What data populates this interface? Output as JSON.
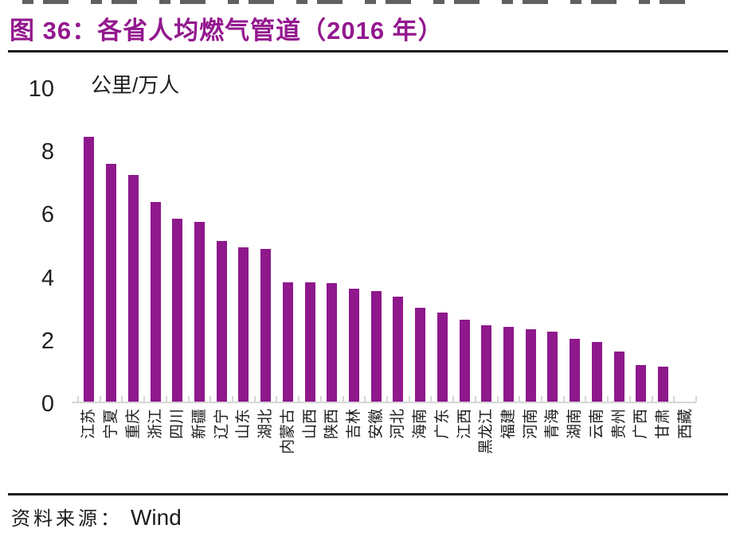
{
  "page": {
    "title": "图 36：各省人均燃气管道（2016 年）",
    "source_label": "资料来源：",
    "source_value": "Wind"
  },
  "colors": {
    "accent": "#93188E",
    "bar": "#8E188C",
    "axis_line": "#d6d6d6",
    "text": "#1c1c1c"
  },
  "chart_data": {
    "type": "bar",
    "title": "各省人均燃气管道（2016 年）",
    "xlabel": "",
    "ylabel": "公里/万人",
    "unit_label": "公里/万人",
    "ylim": [
      0,
      10
    ],
    "yticks": [
      0,
      2,
      4,
      6,
      8,
      10
    ],
    "grid": false,
    "legend": "none",
    "bar_color": "#8E188C",
    "categories": [
      "江苏",
      "宁夏",
      "重庆",
      "浙江",
      "四川",
      "新疆",
      "辽宁",
      "山东",
      "湖北",
      "内蒙古",
      "山西",
      "陕西",
      "吉林",
      "安徽",
      "河北",
      "海南",
      "广东",
      "江西",
      "黑龙江",
      "福建",
      "河南",
      "青海",
      "湖南",
      "云南",
      "贵州",
      "广西",
      "甘肃",
      "西藏"
    ],
    "values": [
      8.4,
      7.55,
      7.2,
      6.35,
      5.8,
      5.7,
      5.1,
      4.9,
      4.85,
      3.8,
      3.78,
      3.75,
      3.58,
      3.5,
      3.33,
      2.97,
      2.82,
      2.6,
      2.42,
      2.37,
      2.3,
      2.23,
      2.0,
      1.9,
      1.6,
      1.15,
      1.12,
      0
    ]
  }
}
